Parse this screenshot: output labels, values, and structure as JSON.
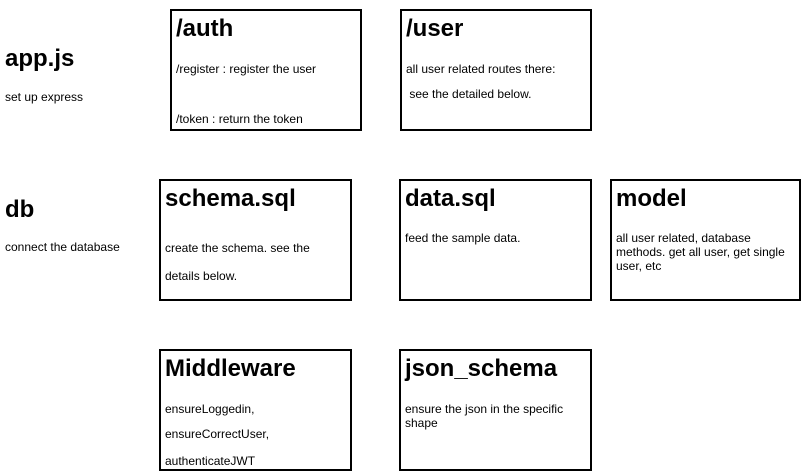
{
  "app": {
    "title": "app.js",
    "desc": "set up express"
  },
  "db": {
    "title": "db",
    "desc": "connect the database"
  },
  "auth_box": {
    "title": "/auth",
    "line1": "/register : register the user",
    "line2": "/token : return the token"
  },
  "user_box": {
    "title": "/user",
    "line1": "all user related routes there:",
    "line2": " see the detailed below."
  },
  "schema_box": {
    "title": "schema.sql",
    "line1": "create the schema. see the",
    "line2": "details below."
  },
  "data_box": {
    "title": "data.sql",
    "line1": "feed the sample data."
  },
  "model_box": {
    "title": "model",
    "text": "all user related, database methods. get all user, get single user, etc"
  },
  "middleware_box": {
    "title": "Middleware",
    "line1": "ensureLoggedin,",
    "line2": "ensureCorrectUser,",
    "line3": "authenticateJWT"
  },
  "json_schema_box": {
    "title": "json_schema",
    "text": "ensure the json in the specific shape"
  }
}
